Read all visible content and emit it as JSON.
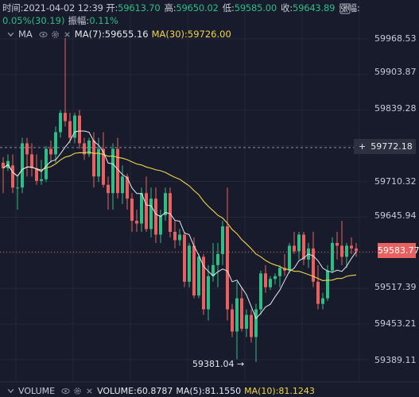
{
  "header": {
    "time_label": "时间:",
    "time": "2021-04-02 12:39",
    "open_label": "开:",
    "open": "59613.70",
    "high_label": "高:",
    "high": "59650.02",
    "low_label": "低:",
    "low": "59585.00",
    "close_label": "收:",
    "close": "59643.89",
    "change_label": "涨幅:",
    "change": "0.05%(30.19)",
    "amplitude_label": "振幅:",
    "amplitude": "0.11%"
  },
  "ma_legend": {
    "name": "MA",
    "ma7": "MA(7):59655.16",
    "ma30": "MA(30):59726.00"
  },
  "volume_legend": {
    "name": "VOLUME",
    "volume": "VOLUME:60.8787",
    "ma5": "MA(5):81.1550",
    "ma10": "MA(10):81.1243"
  },
  "price_axis": [
    "59968.53",
    "59903.87",
    "59839.28",
    "59772.18",
    "59710.32",
    "59645.94",
    "59583.77",
    "59517.39",
    "59453.21",
    "59389.11"
  ],
  "crosshair_price": "59772.18",
  "current_price": "59583.77",
  "low_marker": "59381.04 →",
  "icons": {
    "window": "window-icon",
    "eye": "eye-icon",
    "settings": "gear-icon",
    "close": "close-icon",
    "chevron": "chevron-down-icon"
  },
  "colors": {
    "up": "#2ebd85",
    "down": "#e8605f",
    "ma7": "#e6e9ef",
    "ma30": "#f2d54b",
    "background": "#171b2b"
  },
  "chart_data": {
    "type": "candlestick",
    "price_ylim": [
      59389.11,
      59968.53
    ],
    "candles": [
      [
        59745,
        59755,
        59690,
        59735
      ],
      [
        59735,
        59760,
        59730,
        59748
      ],
      [
        59740,
        59760,
        59690,
        59700
      ],
      [
        59700,
        59720,
        59660,
        59700
      ],
      [
        59700,
        59790,
        59690,
        59780
      ],
      [
        59780,
        59790,
        59720,
        59760
      ],
      [
        59760,
        59780,
        59720,
        59735
      ],
      [
        59735,
        59760,
        59705,
        59712
      ],
      [
        59712,
        59750,
        59705,
        59715
      ],
      [
        59715,
        59775,
        59710,
        59770
      ],
      [
        59770,
        59785,
        59745,
        59760
      ],
      [
        59760,
        59810,
        59745,
        59800
      ],
      [
        59800,
        59840,
        59790,
        59835
      ],
      [
        59835,
        59970,
        59810,
        59820
      ],
      [
        59820,
        59835,
        59780,
        59790
      ],
      [
        59790,
        59835,
        59780,
        59830
      ],
      [
        59830,
        59840,
        59770,
        59780
      ],
      [
        59780,
        59790,
        59750,
        59760
      ],
      [
        59760,
        59790,
        59755,
        59785
      ],
      [
        59785,
        59800,
        59700,
        59720
      ],
      [
        59720,
        59790,
        59710,
        59770
      ],
      [
        59770,
        59800,
        59700,
        59705
      ],
      [
        59705,
        59720,
        59660,
        59690
      ],
      [
        59690,
        59780,
        59660,
        59770
      ],
      [
        59770,
        59790,
        59680,
        59690
      ],
      [
        59690,
        59740,
        59670,
        59720
      ],
      [
        59720,
        59725,
        59660,
        59680
      ],
      [
        59680,
        59690,
        59620,
        59640
      ],
      [
        59640,
        59660,
        59620,
        59635
      ],
      [
        59635,
        59700,
        59620,
        59690
      ],
      [
        59690,
        59720,
        59620,
        59625
      ],
      [
        59625,
        59700,
        59610,
        59680
      ],
      [
        59680,
        59700,
        59600,
        59615
      ],
      [
        59615,
        59660,
        59600,
        59650
      ],
      [
        59650,
        59700,
        59640,
        59690
      ],
      [
        59690,
        59700,
        59610,
        59620
      ],
      [
        59620,
        59640,
        59590,
        59605
      ],
      [
        59605,
        59625,
        59595,
        59615
      ],
      [
        59615,
        59620,
        59520,
        59530
      ],
      [
        59530,
        59600,
        59520,
        59595
      ],
      [
        59595,
        59610,
        59500,
        59505
      ],
      [
        59505,
        59580,
        59500,
        59575
      ],
      [
        59575,
        59580,
        59470,
        59480
      ],
      [
        59480,
        59560,
        59460,
        59540
      ],
      [
        59540,
        59600,
        59530,
        59560
      ],
      [
        59560,
        59600,
        59520,
        59580
      ],
      [
        59580,
        59640,
        59560,
        59630
      ],
      [
        59630,
        59700,
        59460,
        59480
      ],
      [
        59480,
        59490,
        59430,
        59440
      ],
      [
        59440,
        59530,
        59390,
        59500
      ],
      [
        59500,
        59520,
        59440,
        59445
      ],
      [
        59445,
        59480,
        59430,
        59470
      ],
      [
        59470,
        59480,
        59420,
        59430
      ],
      [
        59430,
        59490,
        59385,
        59480
      ],
      [
        59480,
        59550,
        59470,
        59545
      ],
      [
        59545,
        59560,
        59510,
        59520
      ],
      [
        59520,
        59540,
        59515,
        59535
      ],
      [
        59535,
        59545,
        59525,
        59540
      ],
      [
        59540,
        59560,
        59520,
        59555
      ],
      [
        59555,
        59580,
        59540,
        59550
      ],
      [
        59550,
        59600,
        59545,
        59595
      ],
      [
        59595,
        59620,
        59580,
        59585
      ],
      [
        59585,
        59620,
        59570,
        59615
      ],
      [
        59615,
        59620,
        59560,
        59570
      ],
      [
        59570,
        59600,
        59555,
        59590
      ],
      [
        59590,
        59620,
        59520,
        59530
      ],
      [
        59530,
        59560,
        59480,
        59490
      ],
      [
        59490,
        59510,
        59480,
        59500
      ],
      [
        59500,
        59560,
        59495,
        59550
      ],
      [
        59550,
        59610,
        59545,
        59600
      ],
      [
        59600,
        59620,
        59570,
        59595
      ],
      [
        59595,
        59640,
        59560,
        59575
      ],
      [
        59575,
        59600,
        59555,
        59595
      ],
      [
        59595,
        59610,
        59580,
        59590
      ],
      [
        59590,
        59600,
        59575,
        59585
      ]
    ]
  }
}
